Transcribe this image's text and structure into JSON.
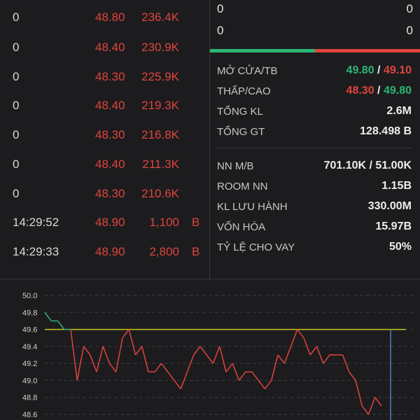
{
  "trades": [
    {
      "time": "0",
      "price": "48.80",
      "volume": "236.4K",
      "side": ""
    },
    {
      "time": "0",
      "price": "48.40",
      "volume": "230.9K",
      "side": ""
    },
    {
      "time": "0",
      "price": "48.30",
      "volume": "225.9K",
      "side": ""
    },
    {
      "time": "0",
      "price": "48.40",
      "volume": "219.3K",
      "side": ""
    },
    {
      "time": "0",
      "price": "48.30",
      "volume": "216.8K",
      "side": ""
    },
    {
      "time": "0",
      "price": "48.40",
      "volume": "211.3K",
      "side": ""
    },
    {
      "time": "0",
      "price": "48.30",
      "volume": "210.6K",
      "side": ""
    },
    {
      "time": "14:29:52",
      "price": "48.90",
      "volume": "1,100",
      "side": "B"
    },
    {
      "time": "14:29:33",
      "price": "48.90",
      "volume": "2,800",
      "side": "B"
    }
  ],
  "top_rows": [
    {
      "left": "0",
      "right": "0"
    },
    {
      "left": "0",
      "right": "0"
    }
  ],
  "info": {
    "open_avg": {
      "label": "MỞ CỬA/TB",
      "open": "49.80",
      "sep": "/",
      "avg": "49.10"
    },
    "low_high": {
      "label": "THẤP/CAO",
      "low": "48.30",
      "sep": "/",
      "high": "49.80"
    },
    "total_vol": {
      "label": "TỔNG KL",
      "value": "2.6M"
    },
    "total_val": {
      "label": "TỔNG GT",
      "value": "128.498 B"
    },
    "foreign_mb": {
      "label": "NN M/B",
      "value": "701.10K / 51.00K"
    },
    "foreign_room": {
      "label": "ROOM NN",
      "value": "1.15B"
    },
    "outstanding": {
      "label": "KL LƯU HÀNH",
      "value": "330.00M"
    },
    "market_cap": {
      "label": "VỐN HÓA",
      "value": "15.97B"
    },
    "margin_ratio": {
      "label": "TỶ LỆ CHO VAY",
      "value": "50%"
    }
  },
  "colors": {
    "up": "#2bb673",
    "down": "#e0443e",
    "reference": "#c8c81e",
    "cursor": "#4a7fd4"
  },
  "chart_data": {
    "type": "line",
    "yticks": [
      "50.0",
      "49.8",
      "49.6",
      "49.4",
      "49.2",
      "49.0",
      "48.8",
      "48.6"
    ],
    "ylim": [
      48.6,
      50.0
    ],
    "reference": 49.6,
    "grid": true,
    "series": [
      {
        "values": [
          49.8,
          49.7,
          49.7,
          49.6,
          49.6,
          49.0,
          49.4,
          49.3,
          49.1,
          49.4,
          49.2,
          49.1,
          49.5,
          49.6,
          49.3,
          49.4,
          49.1,
          49.1,
          49.2,
          49.1,
          49.0,
          48.9,
          49.1,
          49.3,
          49.4,
          49.3,
          49.2,
          49.4,
          49.1,
          49.2,
          49.0,
          49.1,
          49.1,
          49.0,
          48.9,
          49.0,
          49.3,
          49.2,
          49.4,
          49.6,
          49.5,
          49.3,
          49.4,
          49.2,
          49.3,
          49.3,
          49.3,
          49.1,
          49.0,
          48.7,
          48.6,
          48.8,
          48.7
        ]
      }
    ]
  }
}
